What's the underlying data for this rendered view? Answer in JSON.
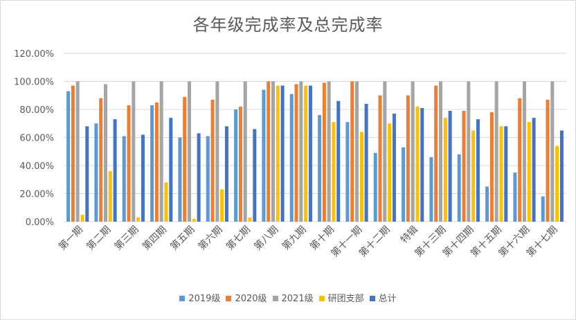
{
  "chart_data": {
    "type": "bar",
    "title": "各年级完成率及总完成率",
    "categories": [
      "第一期",
      "第二期",
      "第三期",
      "第四期",
      "第五期",
      "第六期",
      "第七期",
      "第八期",
      "第九期",
      "第十期",
      "第十一期",
      "第十二期",
      "特辑",
      "第十三期",
      "第十四期",
      "第十五期",
      "第十六期",
      "第十七期"
    ],
    "y_ticks": [
      "0.00%",
      "20.00%",
      "40.00%",
      "60.00%",
      "80.00%",
      "100.00%",
      "120.00%"
    ],
    "ylim": [
      0,
      1.2
    ],
    "grid": true,
    "legend_position": "bottom",
    "series": [
      {
        "name": "2019级",
        "color": "#5b9bd5",
        "values": [
          0.93,
          0.7,
          0.61,
          0.83,
          0.6,
          0.61,
          0.8,
          0.94,
          0.91,
          0.76,
          0.71,
          0.49,
          0.53,
          0.46,
          0.48,
          0.25,
          0.35,
          0.18
        ]
      },
      {
        "name": "2020级",
        "color": "#ed7d31",
        "values": [
          0.97,
          0.88,
          0.83,
          0.85,
          0.89,
          0.87,
          0.82,
          1.0,
          0.98,
          0.99,
          1.0,
          0.9,
          0.9,
          0.97,
          0.79,
          0.78,
          0.88,
          0.87
        ]
      },
      {
        "name": "2021级",
        "color": "#a5a5a5",
        "values": [
          1.0,
          0.98,
          1.0,
          1.0,
          1.0,
          1.0,
          1.0,
          1.0,
          1.0,
          1.0,
          1.0,
          1.0,
          1.0,
          1.0,
          1.0,
          1.0,
          1.0,
          1.0
        ]
      },
      {
        "name": "研团支部",
        "color": "#ffc000",
        "values": [
          0.05,
          0.36,
          0.03,
          0.28,
          0.02,
          0.23,
          0.03,
          0.97,
          0.97,
          0.71,
          0.64,
          0.7,
          0.82,
          0.74,
          0.65,
          0.68,
          0.71,
          0.54
        ]
      },
      {
        "name": "总计",
        "color": "#4472c4",
        "values": [
          0.68,
          0.73,
          0.62,
          0.74,
          0.63,
          0.68,
          0.66,
          0.97,
          0.97,
          0.86,
          0.84,
          0.77,
          0.81,
          0.79,
          0.73,
          0.68,
          0.74,
          0.65
        ]
      }
    ]
  }
}
